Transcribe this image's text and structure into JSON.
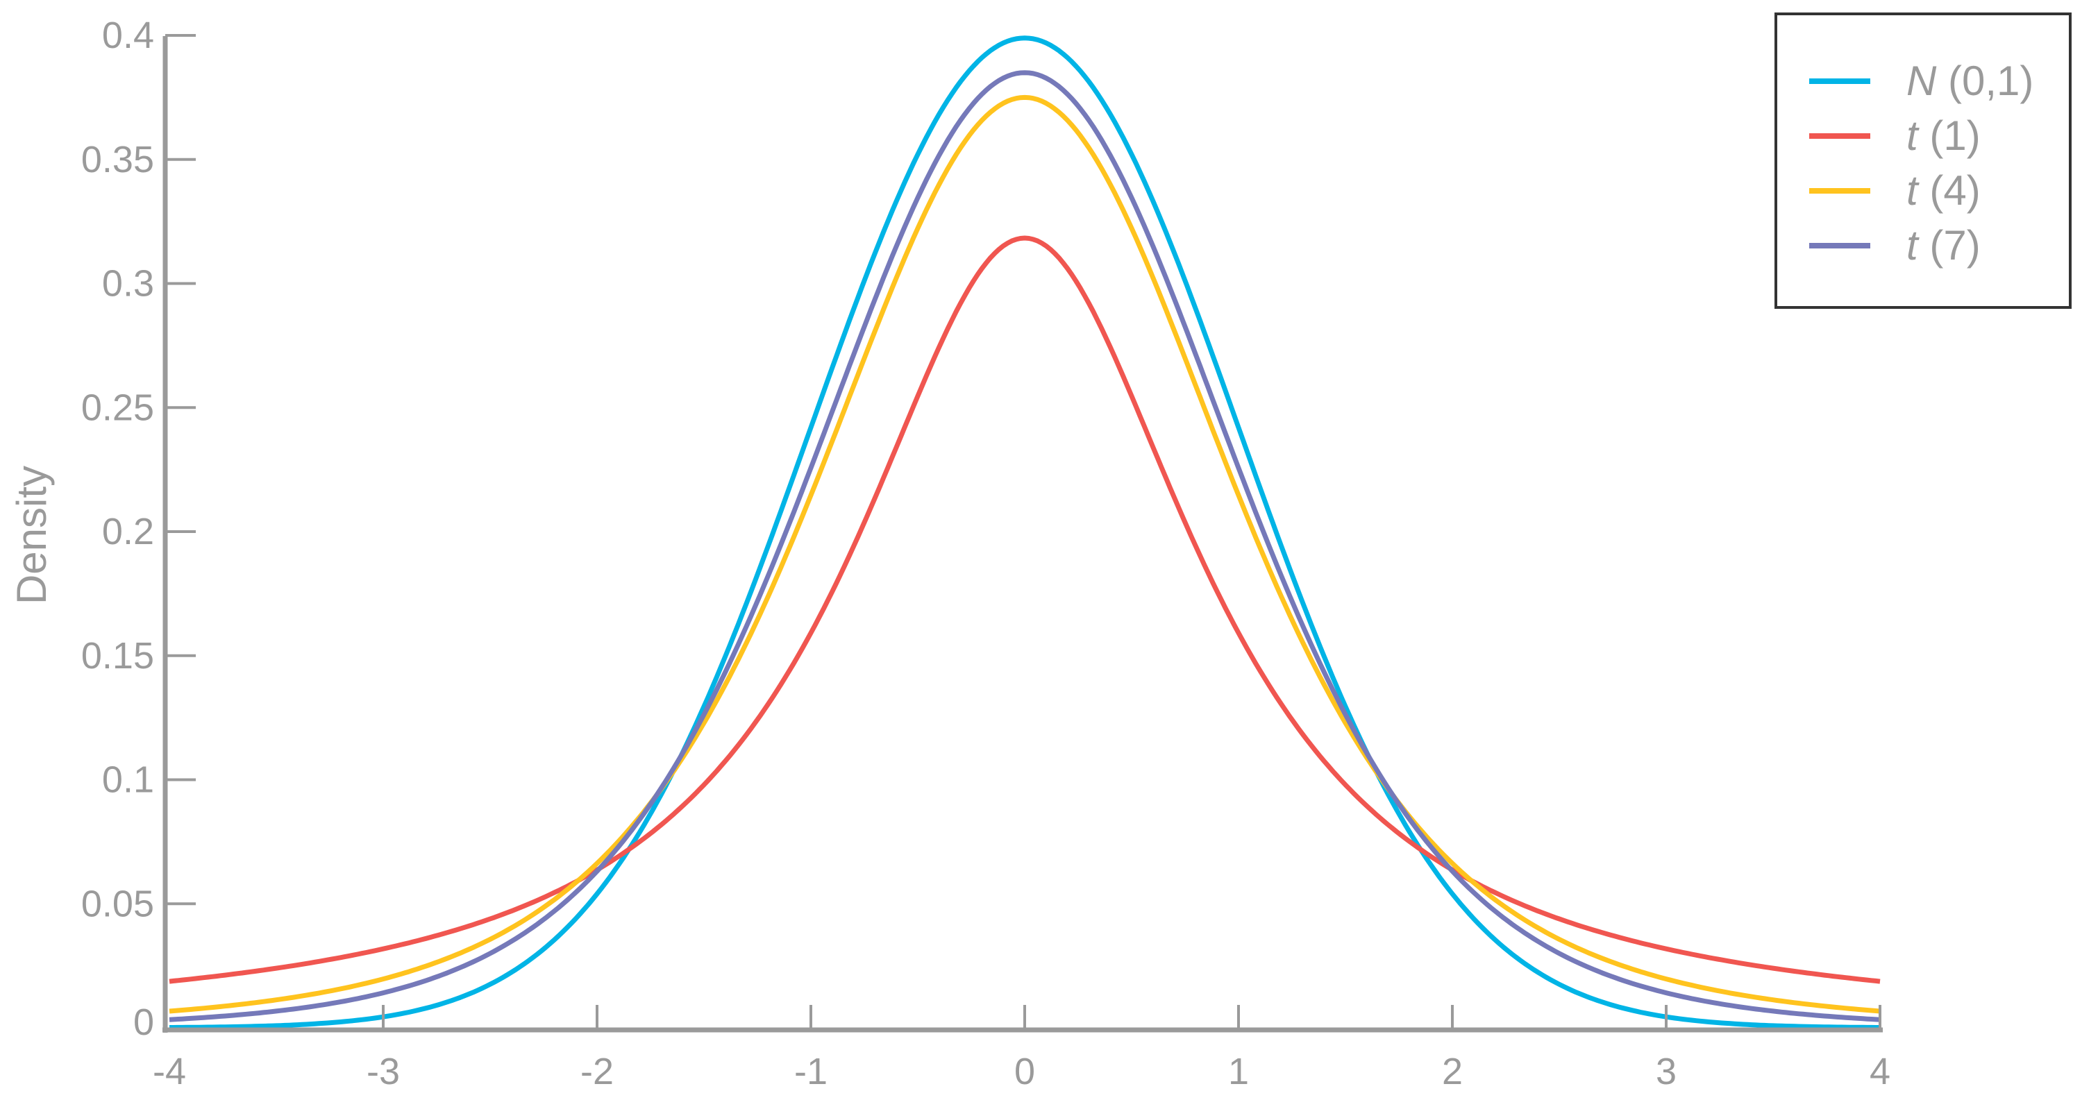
{
  "chart_data": {
    "type": "line",
    "title": "",
    "xlabel": "",
    "ylabel": "Density",
    "xlim": [
      -4,
      4
    ],
    "ylim": [
      0,
      0.4
    ],
    "grid": false,
    "legend_position": "top-right",
    "x_ticks": [
      -4,
      -3,
      -2,
      -1,
      0,
      1,
      2,
      3,
      4
    ],
    "x_tick_labels": [
      "-4",
      "-3",
      "-2",
      "-1",
      "0",
      "1",
      "2",
      "3",
      "4"
    ],
    "y_ticks": [
      0,
      0.05,
      0.1,
      0.15,
      0.2,
      0.25,
      0.3,
      0.35,
      0.4
    ],
    "y_tick_labels": [
      "0",
      "0.05",
      "0.1",
      "0.15",
      "0.2",
      "0.25",
      "0.3",
      "0.35",
      "0.4"
    ],
    "x": [
      -4,
      -3,
      -2,
      -1,
      0,
      1,
      2,
      3,
      4
    ],
    "series": [
      {
        "name": "N (0,1)",
        "italic": "N",
        "rest": " (0,1)",
        "color": "#00b4e6",
        "dist": "normal",
        "df": null,
        "values": [
          0.0001,
          0.0044,
          0.054,
          0.242,
          0.3989,
          0.242,
          0.054,
          0.0044,
          0.0001
        ]
      },
      {
        "name": "t (1)",
        "italic": "t",
        "rest": " (1)",
        "color": "#f05650",
        "dist": "t",
        "df": 1,
        "values": [
          0.0187,
          0.0318,
          0.0637,
          0.1592,
          0.3183,
          0.1592,
          0.0637,
          0.0318,
          0.0187
        ]
      },
      {
        "name": "t (4)",
        "italic": "t",
        "rest": " (4)",
        "color": "#ffc31e",
        "dist": "t",
        "df": 4,
        "values": [
          0.0067,
          0.0197,
          0.0663,
          0.2147,
          0.375,
          0.2147,
          0.0663,
          0.0197,
          0.0067
        ]
      },
      {
        "name": "t (7)",
        "italic": "t",
        "rest": " (7)",
        "color": "#7579b9",
        "dist": "t",
        "df": 7,
        "values": [
          0.0033,
          0.0141,
          0.0631,
          0.2257,
          0.385,
          0.2257,
          0.0631,
          0.0141,
          0.0033
        ]
      }
    ]
  }
}
